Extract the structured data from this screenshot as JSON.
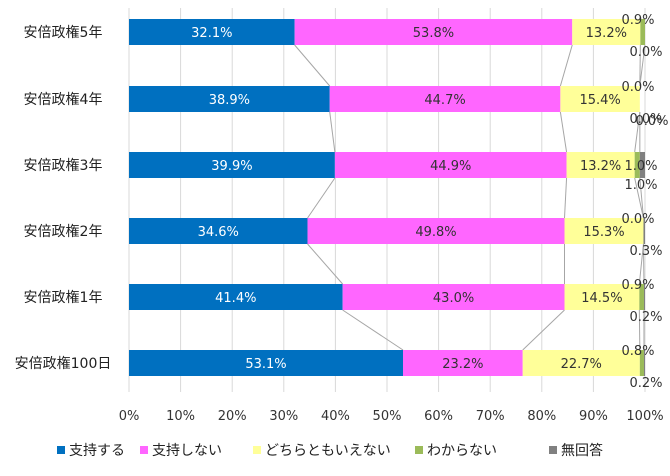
{
  "chart_data": {
    "type": "bar",
    "orientation": "horizontal",
    "stacked": true,
    "percent": true,
    "categories": [
      "安倍政権5年",
      "安倍政権4年",
      "安倍政権3年",
      "安倍政権2年",
      "安倍政権1年",
      "安倍政権100日"
    ],
    "series": [
      {
        "name": "支持する",
        "color": "#0070C0",
        "values": [
          32.1,
          38.9,
          39.9,
          34.6,
          41.4,
          53.1
        ]
      },
      {
        "name": "支持しない",
        "color": "#FF66FF",
        "values": [
          53.8,
          44.7,
          44.9,
          49.8,
          43.0,
          23.2
        ]
      },
      {
        "name": "どちらともいえない",
        "color": "#FFFF99",
        "values": [
          13.2,
          15.4,
          13.2,
          15.3,
          14.5,
          22.7
        ]
      },
      {
        "name": "わからない",
        "color": "#9BBB59",
        "values": [
          0.9,
          0.0,
          1.0,
          0.0,
          0.9,
          0.8
        ]
      },
      {
        "name": "無回答",
        "color": "#808080",
        "values": [
          0.0,
          0.0,
          1.0,
          0.3,
          0.2,
          0.2
        ]
      }
    ],
    "data_labels": [
      [
        "32.1%",
        "53.8%",
        "13.2%",
        "0.9%",
        "0.0%"
      ],
      [
        "38.9%",
        "44.7%",
        "15.4%",
        "0.0%",
        "0.0%"
      ],
      [
        "39.9%",
        "44.9%",
        "13.2%",
        "1.0%",
        "1.0%"
      ],
      [
        "34.6%",
        "49.8%",
        "15.3%",
        "0.0%",
        "0.3%"
      ],
      [
        "41.4%",
        "43.0%",
        "14.5%",
        "0.9%",
        "0.2%"
      ],
      [
        "53.1%",
        "23.2%",
        "22.7%",
        "0.8%",
        "0.2%"
      ]
    ],
    "extra_labels": [
      {
        "after_category": "安倍政権4年",
        "text": "0.0%"
      }
    ],
    "xlim": [
      0,
      100
    ],
    "xticks": [
      "0%",
      "10%",
      "20%",
      "30%",
      "40%",
      "50%",
      "60%",
      "70%",
      "80%",
      "90%",
      "100%"
    ],
    "grid": true,
    "series_lines": true,
    "legend": "bottom"
  }
}
